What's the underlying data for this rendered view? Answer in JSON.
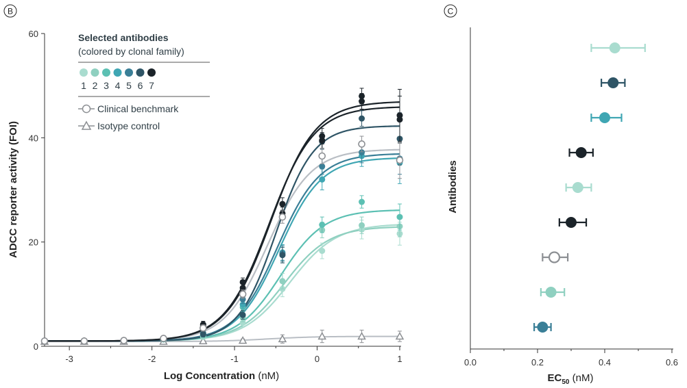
{
  "panels": {
    "b": {
      "letter": "B"
    },
    "c": {
      "letter": "C"
    }
  },
  "colors": {
    "family": [
      "#a9dccf",
      "#8fd0c0",
      "#5cc0b3",
      "#3fa6b3",
      "#3a7f97",
      "#2f5566",
      "#1b2329"
    ],
    "benchmark": "#8c8f93",
    "isotype": "#8c8f93",
    "curve_benchmark": "#b9bec4",
    "axis": "#333333"
  },
  "legend": {
    "title": "Selected antibodies",
    "subtitle": "(colored by clonal family)",
    "numbers": [
      "1",
      "2",
      "3",
      "4",
      "5",
      "6",
      "7"
    ],
    "benchmark_label": "Clinical benchmark",
    "isotype_label": "Isotype control"
  },
  "chart_data": [
    {
      "type": "line",
      "xlabel_main": "Log Concentration",
      "xlabel_unit": " (nM)",
      "ylabel": "ADCC reporter activity (FOI)",
      "xlim": [
        -3.3,
        1.0
      ],
      "ylim": [
        0,
        60
      ],
      "xticks": [
        "-3",
        "-2",
        "-1",
        "0",
        "1"
      ],
      "xtick_values": [
        -3,
        -2,
        -1,
        0,
        1
      ],
      "yticks": [
        "0",
        "20",
        "40",
        "60"
      ],
      "ytick_values": [
        0,
        20,
        40,
        60
      ],
      "x": [
        -3.3,
        -2.82,
        -2.34,
        -1.86,
        -1.38,
        -0.9,
        -0.42,
        0.06,
        0.54,
        1.0
      ],
      "series": [
        {
          "bottom": 1.0,
          "top": 23.5,
          "ec50": -0.33,
          "hill": 1.55,
          "values": [
            1.0,
            1.0,
            1.1,
            1.3,
            1.8,
            4.5,
            11.0,
            18.3,
            22.4,
            21.6
          ],
          "errors": [
            0.2,
            0.2,
            0.2,
            0.3,
            0.5,
            0.8,
            1.5,
            1.5,
            1.8,
            2.2
          ]
        },
        {
          "bottom": 1.0,
          "top": 23.0,
          "ec50": -0.4,
          "hill": 1.6,
          "values": [
            1.0,
            1.0,
            1.1,
            1.3,
            2.0,
            5.5,
            12.5,
            22.3,
            23.2,
            23.0
          ],
          "errors": [
            0.2,
            0.2,
            0.2,
            0.3,
            0.5,
            0.8,
            1.5,
            1.5,
            1.6,
            2.0
          ]
        },
        {
          "bottom": 1.0,
          "top": 26.2,
          "ec50": -0.44,
          "hill": 1.65,
          "values": [
            1.0,
            1.0,
            1.1,
            1.4,
            2.2,
            7.5,
            17.5,
            23.3,
            27.7,
            24.8
          ],
          "errors": [
            0.2,
            0.2,
            0.2,
            0.3,
            0.5,
            0.8,
            1.5,
            1.5,
            1.2,
            2.5
          ]
        },
        {
          "bottom": 1.0,
          "top": 36.2,
          "ec50": -0.46,
          "hill": 1.7,
          "values": [
            1.0,
            1.0,
            1.1,
            1.4,
            2.5,
            8.0,
            18.0,
            32.0,
            36.5,
            35.2
          ],
          "errors": [
            0.2,
            0.2,
            0.2,
            0.3,
            0.5,
            0.8,
            1.5,
            2.0,
            2.0,
            4.0
          ]
        },
        {
          "bottom": 1.0,
          "top": 37.0,
          "ec50": -0.48,
          "hill": 1.7,
          "values": [
            1.0,
            1.0,
            1.1,
            1.4,
            2.5,
            9.0,
            17.8,
            34.5,
            37.2,
            36.0
          ],
          "errors": [
            0.2,
            0.2,
            0.2,
            0.3,
            0.5,
            0.8,
            1.5,
            1.5,
            2.0,
            3.0
          ]
        },
        {
          "bottom": 1.0,
          "top": 42.3,
          "ec50": -0.5,
          "hill": 1.9,
          "values": [
            1.0,
            1.0,
            1.1,
            1.4,
            2.3,
            6.0,
            17.5,
            39.3,
            43.7,
            39.8
          ],
          "errors": [
            0.2,
            0.2,
            0.2,
            0.3,
            0.5,
            0.8,
            1.5,
            1.5,
            1.5,
            5.0
          ]
        },
        {
          "bottom": 1.0,
          "top": 47.0,
          "ec50": -0.56,
          "hill": 1.6,
          "values": [
            1.0,
            1.0,
            1.2,
            1.5,
            4.2,
            12.3,
            27.3,
            40.3,
            48.0,
            44.3
          ],
          "errors": [
            0.2,
            0.2,
            0.2,
            0.3,
            0.6,
            0.8,
            1.2,
            1.5,
            1.5,
            5.0
          ]
        },
        {
          "bottom": 1.0,
          "top": 46.0,
          "ec50": -0.58,
          "hill": 1.6,
          "values": [
            1.1,
            1.1,
            1.2,
            1.6,
            4.0,
            11.2,
            25.5,
            39.5,
            47.0,
            43.5
          ],
          "errors": [
            0.2,
            0.2,
            0.2,
            0.3,
            0.6,
            0.8,
            1.2,
            1.5,
            1.5,
            4.5
          ]
        }
      ],
      "benchmark": {
        "bottom": 1.0,
        "top": 37.8,
        "ec50": -0.6,
        "hill": 1.65,
        "values": [
          1.0,
          1.0,
          1.1,
          1.5,
          3.5,
          10.0,
          24.8,
          36.5,
          38.8,
          35.7
        ],
        "errors": [
          0.2,
          0.2,
          0.2,
          0.3,
          0.6,
          0.8,
          1.2,
          1.5,
          1.5,
          3.5
        ]
      },
      "isotype": {
        "values": [
          0.9,
          0.9,
          0.9,
          0.9,
          1.0,
          1.1,
          1.4,
          1.9,
          1.9,
          1.9
        ],
        "errors": [
          0.2,
          0.2,
          0.2,
          0.2,
          0.2,
          0.3,
          0.8,
          1.2,
          1.2,
          1.0
        ]
      }
    },
    {
      "type": "scatter",
      "xlabel_main": "EC",
      "xlabel_sub": "50",
      "xlabel_unit": " (nM)",
      "ylabel": "Antibodies",
      "xlim": [
        0.0,
        0.6
      ],
      "xticks": [
        "0.0",
        "0.2",
        "0.4",
        "0.6"
      ],
      "xtick_values": [
        0.0,
        0.2,
        0.4,
        0.6
      ],
      "points": [
        {
          "family": 1,
          "ec50": 0.43,
          "low": 0.36,
          "high": 0.52
        },
        {
          "family": 6,
          "ec50": 0.425,
          "low": 0.39,
          "high": 0.46
        },
        {
          "family": 4,
          "ec50": 0.4,
          "low": 0.36,
          "high": 0.45
        },
        {
          "family": 7,
          "ec50": 0.33,
          "low": 0.295,
          "high": 0.365
        },
        {
          "family": 1,
          "ec50": 0.32,
          "low": 0.285,
          "high": 0.36
        },
        {
          "family": 7,
          "ec50": 0.3,
          "low": 0.265,
          "high": 0.345
        },
        {
          "family": 0,
          "ec50": 0.25,
          "low": 0.215,
          "high": 0.29
        },
        {
          "family": 2,
          "ec50": 0.24,
          "low": 0.21,
          "high": 0.28
        },
        {
          "family": 5,
          "ec50": 0.215,
          "low": 0.19,
          "high": 0.24
        }
      ]
    }
  ]
}
